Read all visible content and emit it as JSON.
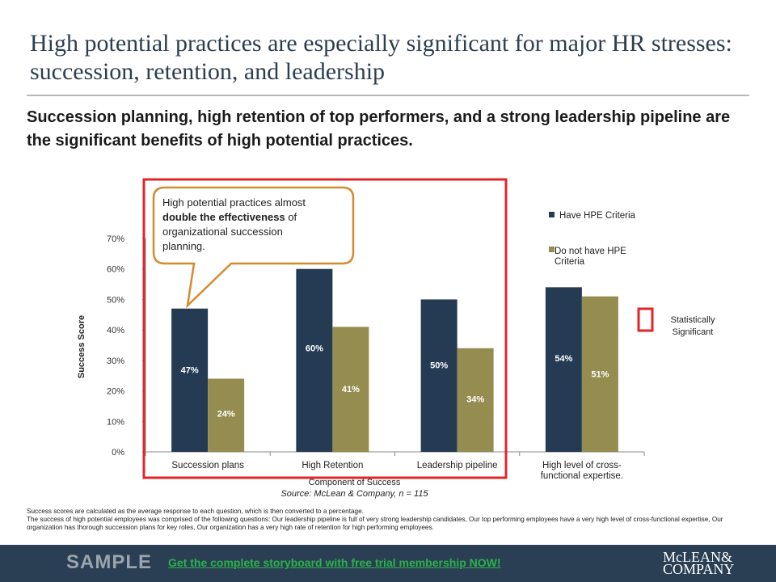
{
  "header": {
    "title": "High potential practices are especially significant for major HR stresses: succession, retention, and leadership",
    "subtitle": "Succession planning, high retention of top performers, and a strong leadership pipeline are the significant benefits of high potential practices."
  },
  "callout": {
    "text_plain": "High potential practices almost ",
    "text_bold": "double the effectiveness",
    "text_end": " of organizational succession planning."
  },
  "significance_legend": {
    "label_line1": "Statistically",
    "label_line2": "Significant"
  },
  "notes": {
    "line1": "Success scores are calculated as the average response to each question, which is then converted to a percentage.",
    "line2": "The success of high potential employees was comprised of the following questions: Our leadership pipeline is full of very strong leadership candidates, Our top performing employees have a very high level of cross-functional expertise, Our organization has thorough succession plans for key roles, Our organization has a very high rate of retention for high performing employees."
  },
  "footer": {
    "sample": "SAMPLE",
    "cta": "Get the complete storyboard with free trial membership NOW!",
    "logo_line1": "McLEAN&",
    "logo_line2": "COMPANY"
  },
  "colors": {
    "series1": "#243b53",
    "series2": "#958c4f",
    "highlight": "#e0262b",
    "callout_border": "#d68a2e",
    "axis": "#888888"
  },
  "chart_data": {
    "type": "bar",
    "categories": [
      "Succession plans",
      "High Retention",
      "Leadership pipeline",
      "High level of cross-functional expertise."
    ],
    "category_lines": [
      [
        "Succession plans"
      ],
      [
        "High Retention"
      ],
      [
        "Leadership pipeline"
      ],
      [
        "High level of cross-",
        "functional expertise."
      ]
    ],
    "series": [
      {
        "name": "Have HPE Criteria",
        "values": [
          47,
          60,
          50,
          54
        ],
        "labels": [
          "47%",
          "60%",
          "50%",
          "54%"
        ]
      },
      {
        "name": "Do not have HPE Criteria",
        "legend_lines": [
          "Do not have HPE",
          "Criteria"
        ],
        "values": [
          24,
          41,
          34,
          51
        ],
        "labels": [
          "24%",
          "41%",
          "34%",
          "51%"
        ]
      }
    ],
    "y_ticks": [
      "0%",
      "10%",
      "20%",
      "30%",
      "40%",
      "50%",
      "60%",
      "70%"
    ],
    "ylim": [
      0,
      70
    ],
    "ylabel": "Success Score",
    "xlabel": "Component of Success",
    "source": "Source: McLean & Company, n = 115",
    "legend_position": "top-right",
    "grid": false,
    "highlighted_categories": [
      "Succession plans",
      "High Retention",
      "Leadership pipeline"
    ]
  }
}
